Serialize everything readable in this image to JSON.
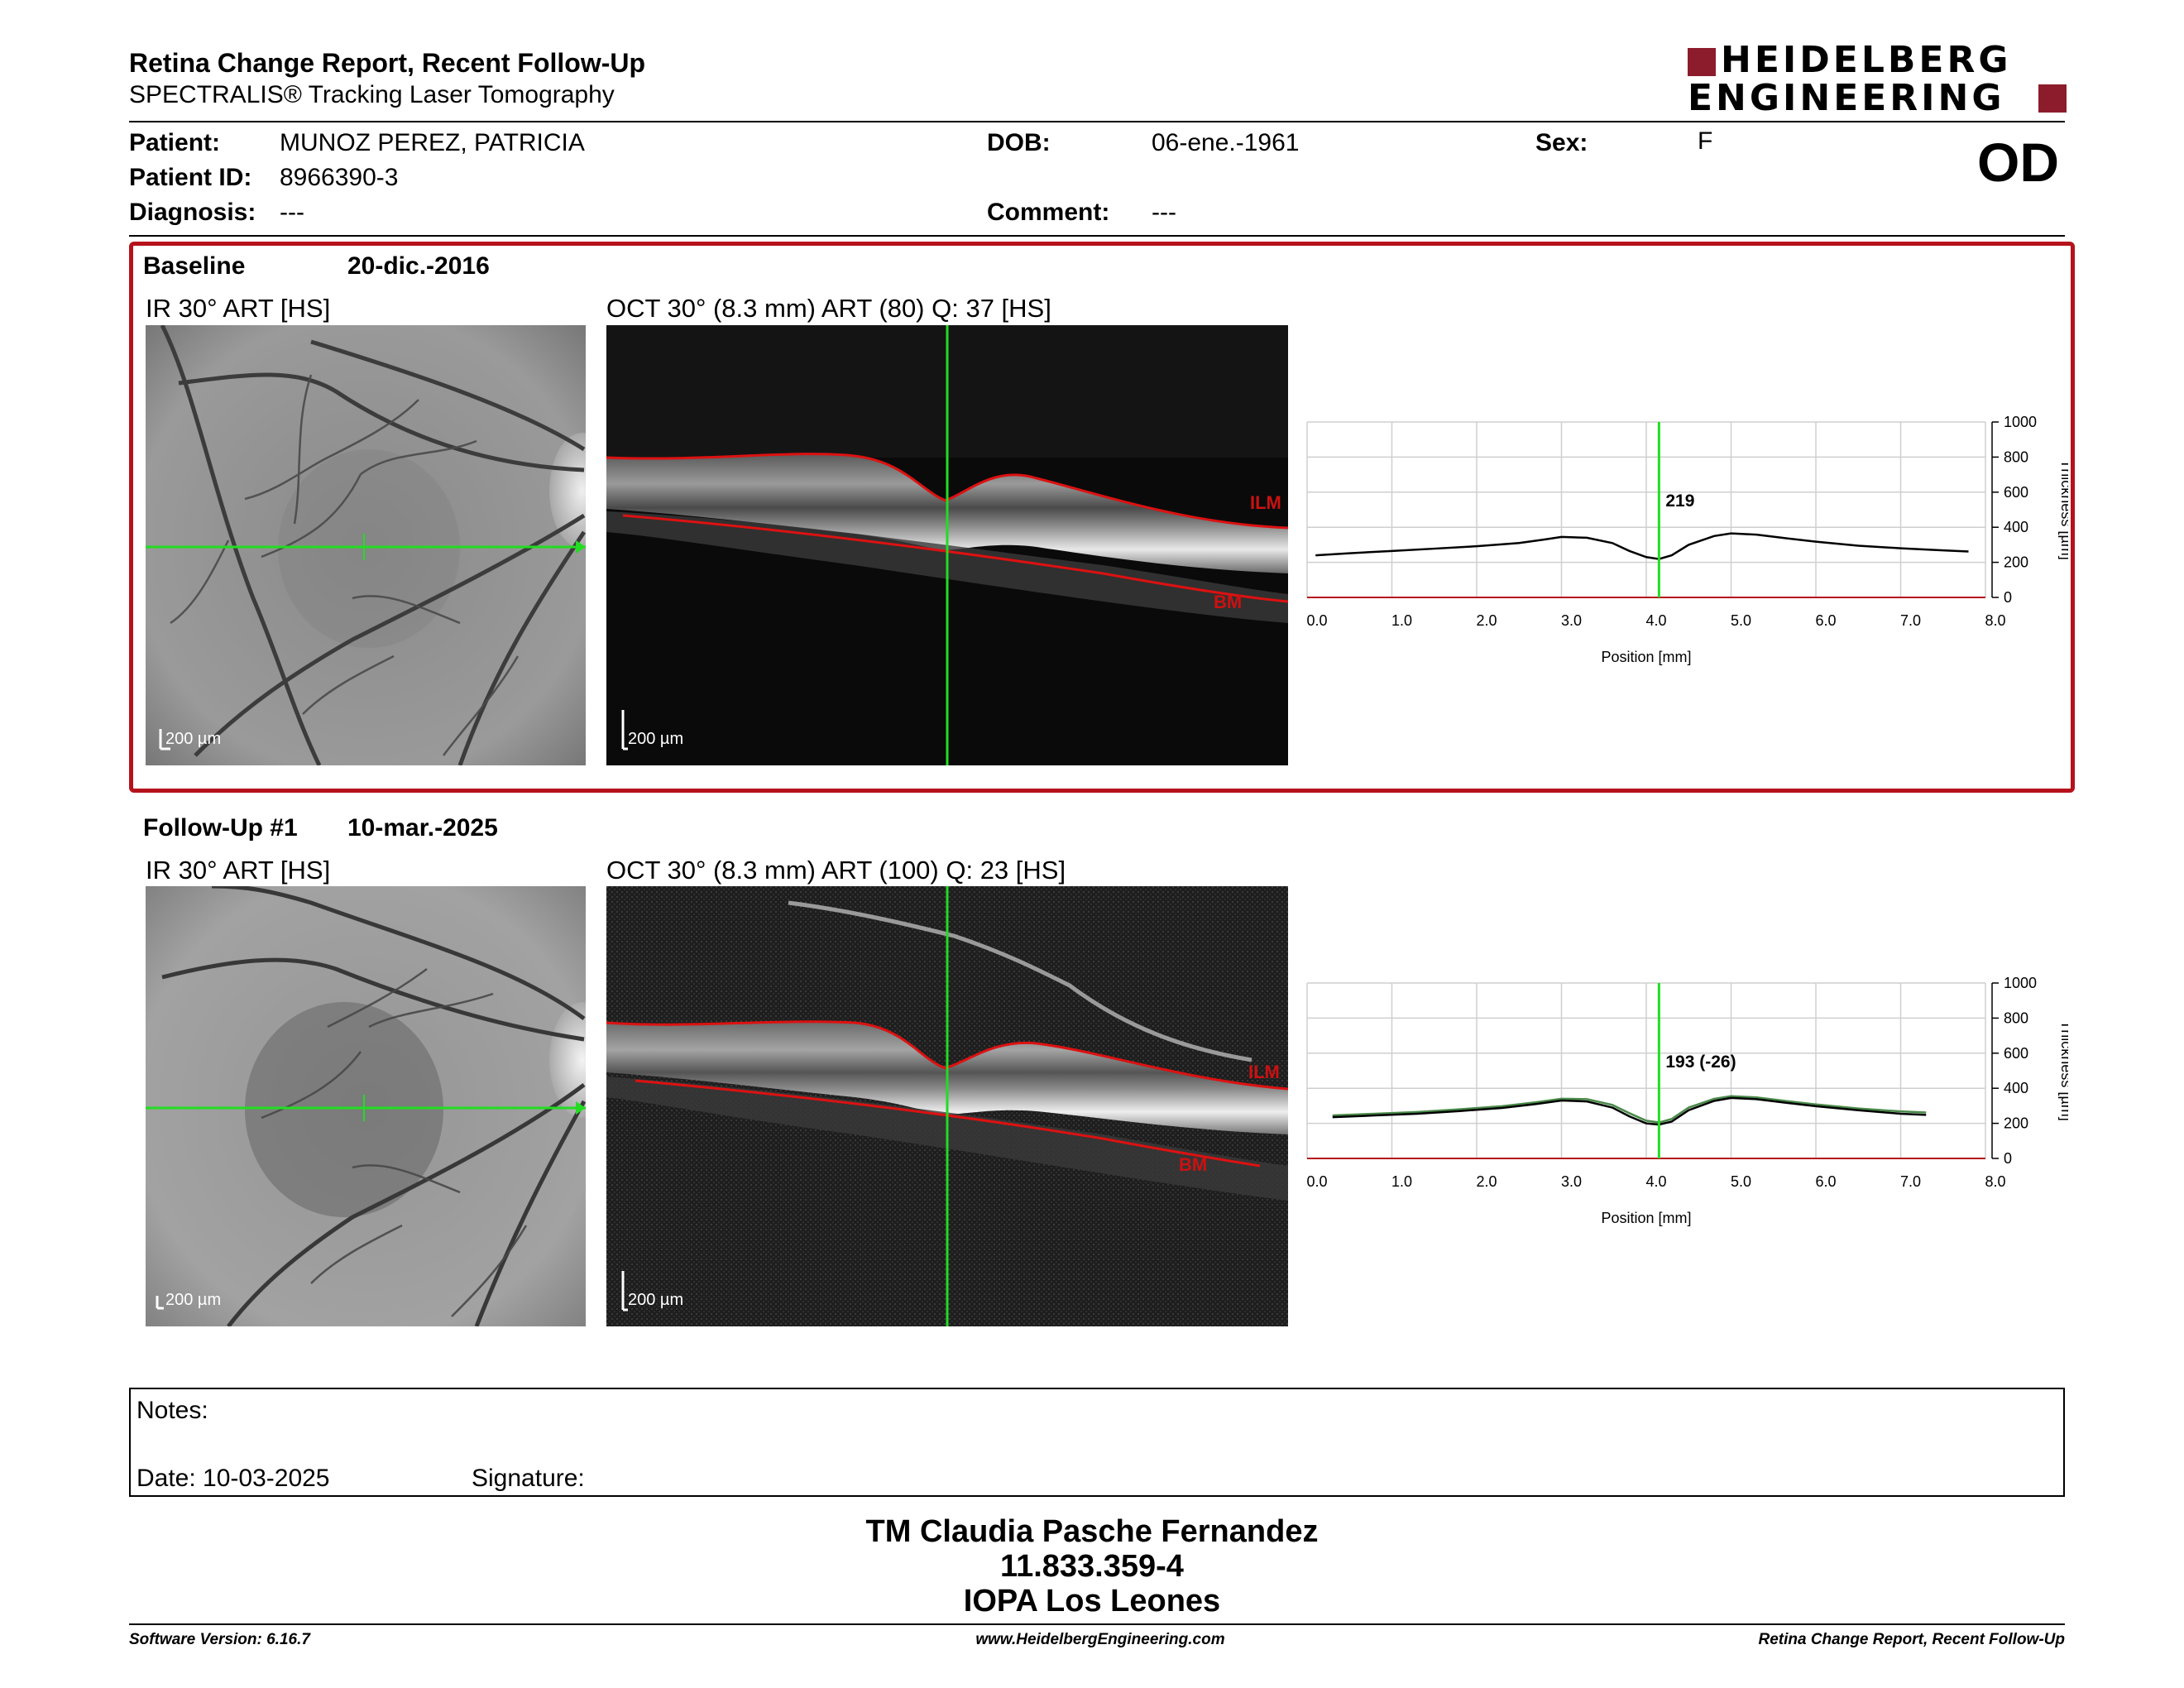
{
  "header": {
    "title": "Retina Change Report, Recent Follow-Up",
    "subtitle": "SPECTRALIS® Tracking Laser Tomography",
    "logo_line1": "HEIDELBERG",
    "logo_line2": "ENGINEERING",
    "eye": "OD"
  },
  "patient": {
    "patient_label": "Patient:",
    "patient_value": "MUNOZ PEREZ, PATRICIA",
    "id_label": "Patient ID:",
    "id_value": "8966390-3",
    "diagnosis_label": "Diagnosis:",
    "diagnosis_value": "---",
    "dob_label": "DOB:",
    "dob_value": "06-ene.-1961",
    "comment_label": "Comment:",
    "comment_value": "---",
    "sex_label": "Sex:",
    "sex_value": "F"
  },
  "baseline": {
    "label": "Baseline",
    "date": "20-dic.-2016",
    "ir_label": "IR 30° ART [HS]",
    "oct_label": "OCT 30° (8.3 mm) ART (80) Q: 37 [HS]",
    "ir_scale": "200 µm",
    "oct_scale": "200 µm",
    "ilm": "ILM",
    "bm": "BM"
  },
  "followup": {
    "label": "Follow-Up #1",
    "date": "10-mar.-2025",
    "ir_label": "IR 30° ART [HS]",
    "oct_label": "OCT 30° (8.3 mm) ART (100) Q: 23 [HS]",
    "ir_scale": "200 µm",
    "oct_scale": "200 µm",
    "ilm": "ILM",
    "bm": "BM"
  },
  "chart_data": [
    {
      "type": "line",
      "xlabel": "Position [mm]",
      "ylabel": "Thickness [µm]",
      "xlim": [
        0,
        8
      ],
      "ylim": [
        0,
        1000
      ],
      "xticks": [
        "0.0",
        "1.0",
        "2.0",
        "3.0",
        "4.0",
        "5.0",
        "6.0",
        "7.0",
        "8.0"
      ],
      "yticks": [
        "0",
        "200",
        "400",
        "600",
        "800",
        "1000"
      ],
      "grid": true,
      "marker_x": 4.15,
      "marker_label": "219",
      "series": [
        {
          "color": "#000000",
          "x": [
            0.1,
            0.5,
            1.0,
            1.5,
            2.0,
            2.5,
            2.8,
            3.0,
            3.3,
            3.6,
            3.8,
            4.0,
            4.15,
            4.3,
            4.5,
            4.8,
            5.0,
            5.3,
            5.6,
            6.0,
            6.5,
            7.0,
            7.5,
            7.8
          ],
          "y": [
            240,
            252,
            265,
            278,
            292,
            310,
            330,
            345,
            340,
            310,
            265,
            230,
            219,
            240,
            300,
            350,
            365,
            358,
            340,
            318,
            295,
            280,
            268,
            262
          ]
        }
      ]
    },
    {
      "type": "line",
      "xlabel": "Position [mm]",
      "ylabel": "Thickness [µm]",
      "xlim": [
        0,
        8
      ],
      "ylim": [
        0,
        1000
      ],
      "xticks": [
        "0.0",
        "1.0",
        "2.0",
        "3.0",
        "4.0",
        "5.0",
        "6.0",
        "7.0",
        "8.0"
      ],
      "yticks": [
        "0",
        "200",
        "400",
        "600",
        "800",
        "1000"
      ],
      "grid": true,
      "marker_x": 4.15,
      "marker_label": "193 (-26)",
      "series": [
        {
          "color": "#4a8a4a",
          "x": [
            0.3,
            0.8,
            1.3,
            1.8,
            2.3,
            2.7,
            3.0,
            3.3,
            3.6,
            3.8,
            4.0,
            4.15,
            4.3,
            4.5,
            4.8,
            5.0,
            5.3,
            5.6,
            6.0,
            6.5,
            7.0,
            7.3
          ],
          "y": [
            245,
            255,
            265,
            280,
            298,
            320,
            340,
            338,
            305,
            258,
            215,
            205,
            225,
            290,
            340,
            355,
            348,
            330,
            308,
            285,
            268,
            262
          ]
        },
        {
          "color": "#000000",
          "x": [
            0.3,
            0.8,
            1.3,
            1.8,
            2.3,
            2.7,
            3.0,
            3.3,
            3.6,
            3.8,
            4.0,
            4.15,
            4.3,
            4.5,
            4.8,
            5.0,
            5.3,
            5.6,
            6.0,
            6.5,
            7.0,
            7.3
          ],
          "y": [
            235,
            245,
            255,
            270,
            288,
            310,
            330,
            325,
            290,
            240,
            200,
            193,
            210,
            275,
            328,
            345,
            338,
            320,
            298,
            275,
            255,
            248
          ]
        }
      ]
    }
  ],
  "notes": {
    "label": "Notes:",
    "date_label": "Date: 10-03-2025",
    "signature_label": "Signature:"
  },
  "signature_block": {
    "name": "TM Claudia Pasche Fernandez",
    "id": "11.833.359-4",
    "place": "IOPA Los Leones"
  },
  "footer": {
    "software": "Software Version: 6.16.7",
    "website": "www.HeidelbergEngineering.com",
    "report": "Retina Change Report, Recent Follow-Up"
  },
  "colors": {
    "brand_red": "#b5121b",
    "scan_line": "#22dd22",
    "layer_line": "#dd1111"
  }
}
